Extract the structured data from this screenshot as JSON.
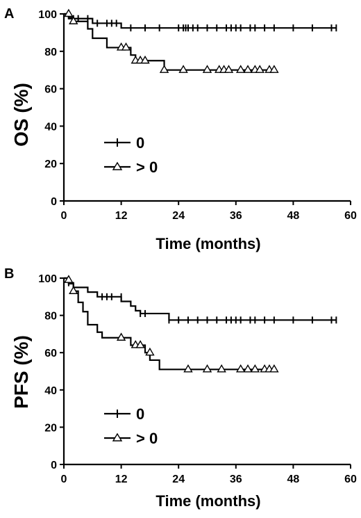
{
  "chart_data": [
    {
      "type": "line",
      "panel": "A",
      "xlabel": "Time (months)",
      "ylabel": "OS (%)",
      "xlim": [
        0,
        60
      ],
      "ylim": [
        0,
        100
      ],
      "xticks": [
        0,
        12,
        24,
        36,
        48,
        60
      ],
      "yticks": [
        0,
        20,
        40,
        60,
        80,
        100
      ],
      "grid": false,
      "legend": "center-left",
      "series": [
        {
          "name": "0",
          "marker": "plus",
          "steps": [
            [
              0,
              100
            ],
            [
              1,
              97.5
            ],
            [
              6,
              95
            ],
            [
              12,
              92.5
            ],
            [
              57,
              92.5
            ]
          ],
          "censored": [
            [
              2,
              97.5
            ],
            [
              3,
              97.5
            ],
            [
              5,
              97.5
            ],
            [
              7,
              95
            ],
            [
              9,
              95
            ],
            [
              10,
              95
            ],
            [
              11,
              95
            ],
            [
              14,
              92.5
            ],
            [
              17,
              92.5
            ],
            [
              20,
              92.5
            ],
            [
              24,
              92.5
            ],
            [
              25,
              92.5
            ],
            [
              25.5,
              92.5
            ],
            [
              26,
              92.5
            ],
            [
              27,
              92.5
            ],
            [
              28,
              92.5
            ],
            [
              30,
              92.5
            ],
            [
              32,
              92.5
            ],
            [
              34,
              92.5
            ],
            [
              35,
              92.5
            ],
            [
              36,
              92.5
            ],
            [
              37,
              92.5
            ],
            [
              39,
              92.5
            ],
            [
              40,
              92.5
            ],
            [
              42,
              92.5
            ],
            [
              44,
              92.5
            ],
            [
              48,
              92.5
            ],
            [
              52,
              92.5
            ],
            [
              56,
              92.5
            ],
            [
              57,
              92.5
            ]
          ]
        },
        {
          "name": "> 0",
          "marker": "triangle",
          "steps": [
            [
              0,
              100
            ],
            [
              1,
              98
            ],
            [
              2,
              96
            ],
            [
              5,
              92
            ],
            [
              6,
              87
            ],
            [
              9,
              82
            ],
            [
              14,
              78
            ],
            [
              15,
              75
            ],
            [
              21,
              70
            ],
            [
              44,
              70
            ]
          ],
          "censored": [
            [
              1,
              100
            ],
            [
              2,
              96
            ],
            [
              12,
              82
            ],
            [
              13,
              82
            ],
            [
              15,
              75
            ],
            [
              16,
              75
            ],
            [
              17,
              75
            ],
            [
              21,
              70
            ],
            [
              25,
              70
            ],
            [
              30,
              70
            ],
            [
              32.5,
              70
            ],
            [
              33.5,
              70
            ],
            [
              34.5,
              70
            ],
            [
              37,
              70
            ],
            [
              38.5,
              70
            ],
            [
              40,
              70
            ],
            [
              41,
              70
            ],
            [
              43,
              70
            ],
            [
              44,
              70
            ]
          ]
        }
      ]
    },
    {
      "type": "line",
      "panel": "B",
      "xlabel": "Time (months)",
      "ylabel": "PFS (%)",
      "xlim": [
        0,
        60
      ],
      "ylim": [
        0,
        100
      ],
      "xticks": [
        0,
        12,
        24,
        36,
        48,
        60
      ],
      "yticks": [
        0,
        20,
        40,
        60,
        80,
        100
      ],
      "grid": false,
      "legend": "bottom-left",
      "series": [
        {
          "name": "0",
          "marker": "plus",
          "steps": [
            [
              0,
              100
            ],
            [
              1,
              97.5
            ],
            [
              2,
              95
            ],
            [
              5,
              92.5
            ],
            [
              7,
              90
            ],
            [
              12,
              87.5
            ],
            [
              14,
              85
            ],
            [
              15,
              82.5
            ],
            [
              16,
              81
            ],
            [
              22,
              77.5
            ],
            [
              57,
              77.5
            ]
          ],
          "censored": [
            [
              1,
              97.5
            ],
            [
              8,
              90
            ],
            [
              9,
              90
            ],
            [
              10,
              90
            ],
            [
              12,
              90
            ],
            [
              16,
              81
            ],
            [
              17,
              81
            ],
            [
              22,
              77.5
            ],
            [
              24,
              77.5
            ],
            [
              26,
              77.5
            ],
            [
              28,
              77.5
            ],
            [
              30,
              77.5
            ],
            [
              32,
              77.5
            ],
            [
              34,
              77.5
            ],
            [
              35,
              77.5
            ],
            [
              36,
              77.5
            ],
            [
              37,
              77.5
            ],
            [
              39,
              77.5
            ],
            [
              40,
              77.5
            ],
            [
              42,
              77.5
            ],
            [
              44,
              77.5
            ],
            [
              48,
              77.5
            ],
            [
              52,
              77.5
            ],
            [
              56,
              77.5
            ],
            [
              57,
              77.5
            ]
          ]
        },
        {
          "name": "> 0",
          "marker": "triangle",
          "steps": [
            [
              0,
              100
            ],
            [
              1,
              97
            ],
            [
              2,
              93
            ],
            [
              3,
              87
            ],
            [
              4,
              82
            ],
            [
              5,
              75
            ],
            [
              7,
              71
            ],
            [
              8,
              68
            ],
            [
              14,
              64
            ],
            [
              17,
              60
            ],
            [
              18,
              56
            ],
            [
              20,
              51
            ],
            [
              44,
              51
            ]
          ],
          "censored": [
            [
              1,
              99
            ],
            [
              2,
              93
            ],
            [
              12,
              68
            ],
            [
              15,
              64
            ],
            [
              16,
              64
            ],
            [
              18,
              60
            ],
            [
              26,
              51
            ],
            [
              30,
              51
            ],
            [
              33,
              51
            ],
            [
              37,
              51
            ],
            [
              38.5,
              51
            ],
            [
              40,
              51
            ],
            [
              42,
              51
            ],
            [
              43,
              51
            ],
            [
              44,
              51
            ]
          ]
        }
      ]
    }
  ]
}
